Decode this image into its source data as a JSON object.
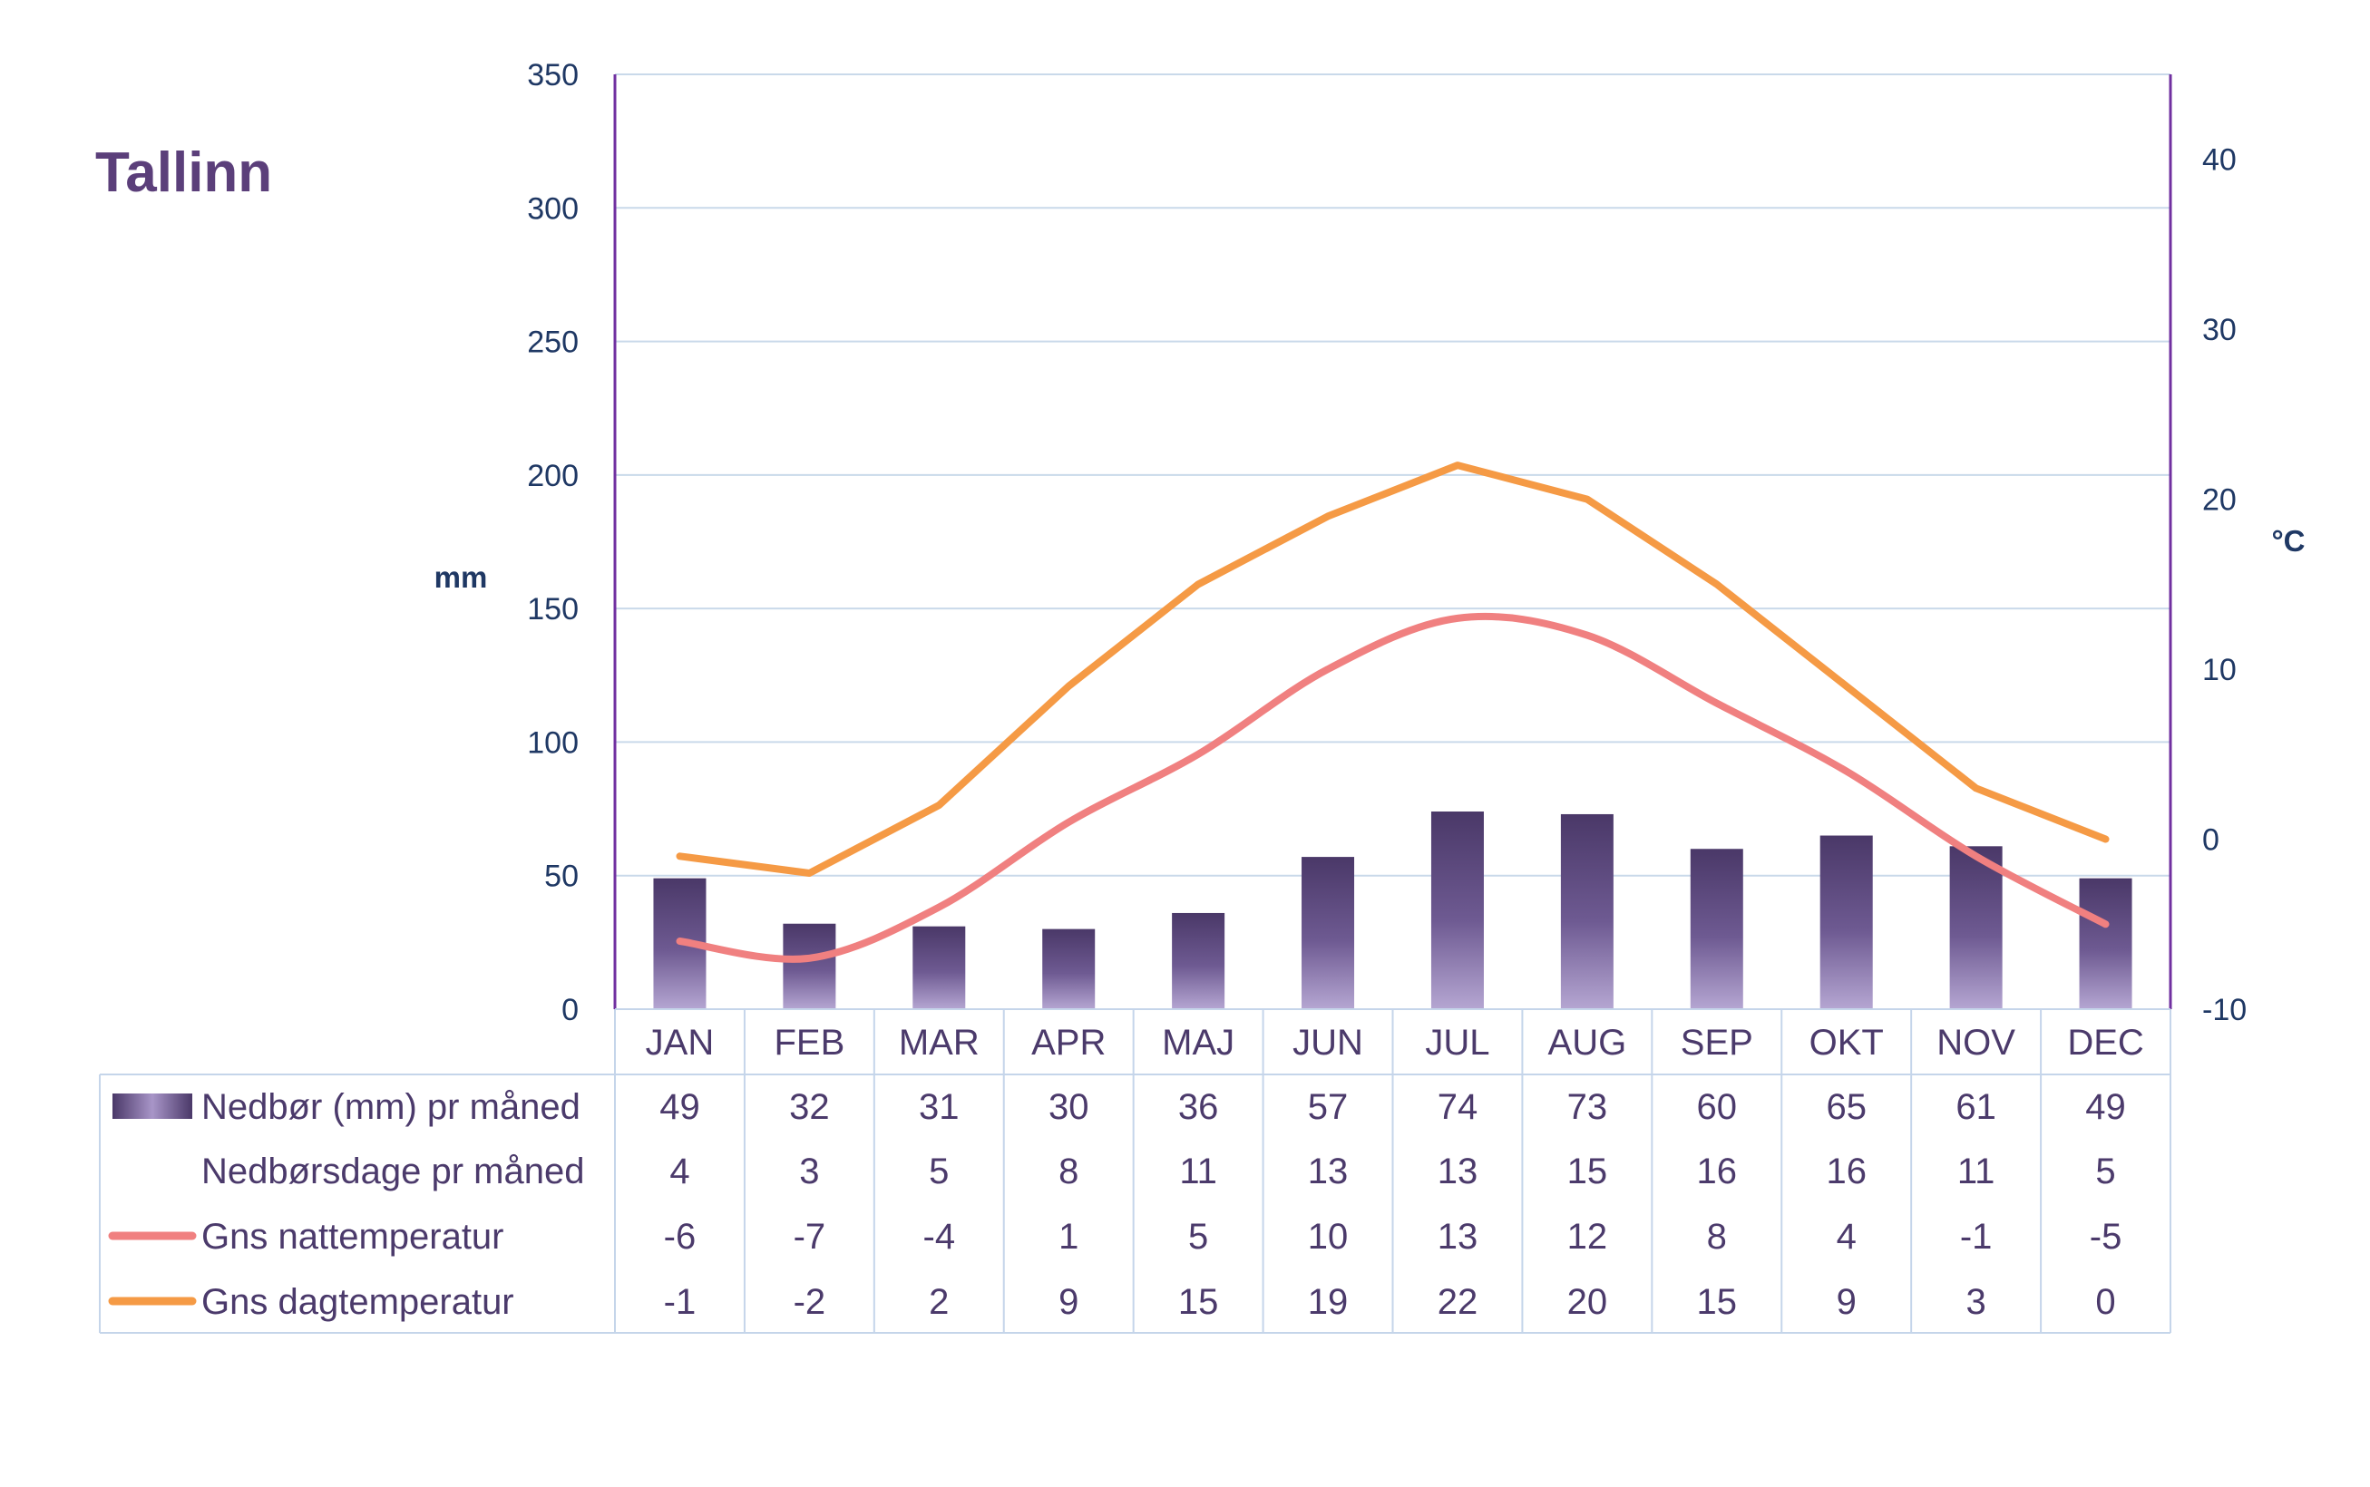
{
  "chart_data": {
    "type": "bar",
    "title": "Tallinn",
    "categories": [
      "JAN",
      "FEB",
      "MAR",
      "APR",
      "MAJ",
      "JUN",
      "JUL",
      "AUG",
      "SEP",
      "OKT",
      "NOV",
      "DEC"
    ],
    "y_left": {
      "label": "mm",
      "ylim": [
        0,
        350
      ],
      "ticks": [
        "0",
        "50",
        "100",
        "150",
        "200",
        "250",
        "300",
        "350"
      ]
    },
    "y_right": {
      "label": "°C",
      "ylim": [
        -10,
        45
      ],
      "ticks": [
        "-10",
        "0",
        "10",
        "20",
        "30",
        "40"
      ]
    },
    "grid": true,
    "series": [
      {
        "name": "Nedbør (mm) pr måned",
        "type": "bar",
        "axis": "left",
        "values": [
          49,
          32,
          31,
          30,
          36,
          57,
          74,
          73,
          60,
          65,
          61,
          49
        ],
        "color": "#5b4a7e"
      },
      {
        "name": "Nedbørsdage pr måned",
        "type": "table",
        "values": [
          4,
          3,
          5,
          8,
          11,
          13,
          13,
          15,
          16,
          16,
          11,
          5
        ]
      },
      {
        "name": "Gns nattemperatur",
        "type": "line",
        "axis": "right",
        "values": [
          -6,
          -7,
          -4,
          1,
          5,
          10,
          13,
          12,
          8,
          4,
          -1,
          -5
        ],
        "color": "#f08080"
      },
      {
        "name": "Gns dagtemperatur",
        "type": "line",
        "axis": "right",
        "values": [
          -1,
          -2,
          2,
          9,
          15,
          19,
          22,
          20,
          15,
          9,
          3,
          0
        ],
        "color": "#f59a45"
      }
    ],
    "colors": {
      "axis": "#7030a0",
      "grid": "#c9d9ea",
      "tick_text": "#1f3864",
      "table_text": "#4b3a6b",
      "title": "#5b3f7a",
      "table_border": "#c5d5ea"
    }
  }
}
